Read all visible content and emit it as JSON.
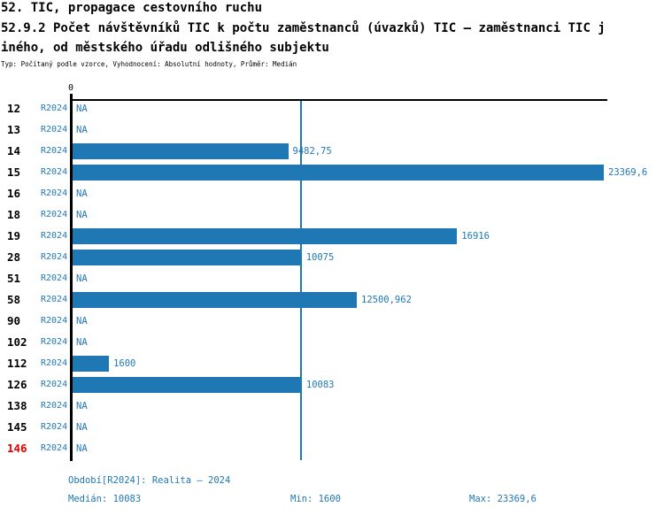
{
  "header": {
    "line1": "52. TIC, propagace cestovního ruchu",
    "line2": "52.9.2 Počet návštěvníků TIC k počtu zaměstnanců (úvazků) TIC – zaměstnanci TIC j",
    "line3": "iného, od městského úřadu odlišného subjektu",
    "line4": "Typ: Počítaný podle vzorce, Vyhodnocení: Absolutní hodnoty, Průměr: Medián"
  },
  "colors": {
    "bar": "#1F77B4",
    "text_blue": "#1F77B4",
    "highlight_row": "#E00000",
    "axis": "#000000"
  },
  "chart_data": {
    "type": "bar",
    "orientation": "horizontal",
    "title": "52. TIC, propagace cestovního ruchu — 52.9.2 Počet návštěvníků TIC k počtu zaměstnanců (úvazků) TIC – zaměstnanci TIC jiného, od městského úřadu odlišného subjektu",
    "subtitle": "Typ: Počítaný podle vzorce, Vyhodnocení: Absolutní hodnoty, Průměr: Medián",
    "axis_zero_label": "0",
    "series_label": "R2024",
    "xlim": [
      0,
      23369.6
    ],
    "median_line_value": 10083,
    "categories": [
      "12",
      "13",
      "14",
      "15",
      "16",
      "18",
      "19",
      "28",
      "51",
      "58",
      "90",
      "102",
      "112",
      "126",
      "138",
      "145",
      "146"
    ],
    "values": [
      null,
      null,
      9482.75,
      23369.6,
      null,
      null,
      16916,
      10075,
      null,
      12500.962,
      null,
      null,
      1600,
      10083,
      null,
      null,
      null
    ],
    "value_labels": [
      "NA",
      "NA",
      "9482,75",
      "23369,6",
      "NA",
      "NA",
      "16916",
      "10075",
      "NA",
      "12500,962",
      "NA",
      "NA",
      "1600",
      "10083",
      "NA",
      "NA",
      "NA"
    ],
    "highlighted_categories": [
      "146"
    ],
    "grid": false,
    "legend": false
  },
  "footer": {
    "period": "Období[R2024]: Realita – 2024",
    "median": "Medián: 10083",
    "min": "Min: 1600",
    "max": "Max: 23369,6"
  }
}
